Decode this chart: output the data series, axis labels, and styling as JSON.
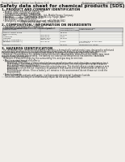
{
  "bg_color": "#f0ede8",
  "title": "Safety data sheet for chemical products (SDS)",
  "header_left": "Product Name: Lithium Ion Battery Cell",
  "header_right_line1": "Substance number: MCD56-08IO1",
  "header_right_line2": "Established / Revision: Dec.7.2016",
  "section1_title": "1. PRODUCT AND COMPANY IDENTIFICATION",
  "section1_items": [
    "  • Product name: Lithium Ion Battery Cell",
    "  • Product code: Cylindrical-type cell",
    "      DIY-86500, DIY-86500L, DIY-86500A",
    "  • Company name:    Banyu Electric Co., Ltd., Mobile Energy Company",
    "  • Address:         20-1  Kamimurata, Sumoto-City, Hyogo, Japan",
    "  • Telephone number:  +81-799-26-4111",
    "  • Fax number:  +81-799-26-4121",
    "  • Emergency telephone number (daytime): +81-799-26-3862",
    "                                (Night and holiday): +81-799-26-4101"
  ],
  "section2_title": "2. COMPOSITION / INFORMATION ON INGREDIENTS",
  "section2_sub": "  • Substance or preparation: Preparation",
  "section2_sub2": "  • Information about the chemical nature of product:",
  "table_headers": [
    "Component chemical name\nCommon name",
    "CAS number",
    "Concentration /\nConcentration range",
    "Classification and\nhazard labeling"
  ],
  "table_rows": [
    [
      "Lithium cobalt oxide\n(LiMn-Co-NiO2)",
      "-",
      "30-60%",
      "-"
    ],
    [
      "Iron",
      "7439-89-6",
      "15-30%",
      "-"
    ],
    [
      "Aluminum",
      "7429-90-5",
      "2-5%",
      "-"
    ],
    [
      "Graphite\n(Flake or graphite-1)\n(All flake graphite-1)",
      "77782-42-5\n7782-44-0",
      "10-20%",
      "-"
    ],
    [
      "Copper",
      "7440-50-8",
      "5-10%",
      "Sensitization of the skin\ngroup No.2"
    ],
    [
      "Organic electrolyte",
      "-",
      "10-20%",
      "Inflammatory liquid"
    ]
  ],
  "section3_title": "3. HAZARDS IDENTIFICATION",
  "section3_text": [
    "   For the battery cell, chemical materials are stored in a hermetically sealed metal case, designed to withstand",
    "temperatures and pressures encountered during normal use. As a result, during normal use, there is no",
    "physical danger of ignition or explosion and there is no danger of hazardous materials leakage.",
    "   However, if exposed to a fire, added mechanical shocks, decomposed, short-circuit electrolyte may issue.",
    "the gas release cannot be operated. The battery cell case will be breached at fire-extreme, hazardous",
    "materials may be released.",
    "   Moreover, if heated strongly by the surrounding fire, acid gas may be emitted.",
    "",
    "  • Most important hazard and effects:",
    "      Human health effects:",
    "         Inhalation: The release of the electrolyte has an anesthesia action and stimulates a respiratory tract.",
    "         Skin contact: The release of the electrolyte stimulates a skin. The electrolyte skin contact causes a",
    "         sore and stimulation on the skin.",
    "         Eye contact: The release of the electrolyte stimulates eyes. The electrolyte eye contact causes a sore",
    "         and stimulation on the eye. Especially, a substance that causes a strong inflammation of the eye is",
    "         contained.",
    "         Environmental effects: Since a battery cell remains in the environment, do not throw out it into the",
    "         environment.",
    "",
    "  • Specific hazards:",
    "      If the electrolyte contacts with water, it will generate detrimental hydrogen fluoride.",
    "      Since the used electrolyte is inflammatory liquid, do not bring close to fire."
  ],
  "footer_line": ""
}
